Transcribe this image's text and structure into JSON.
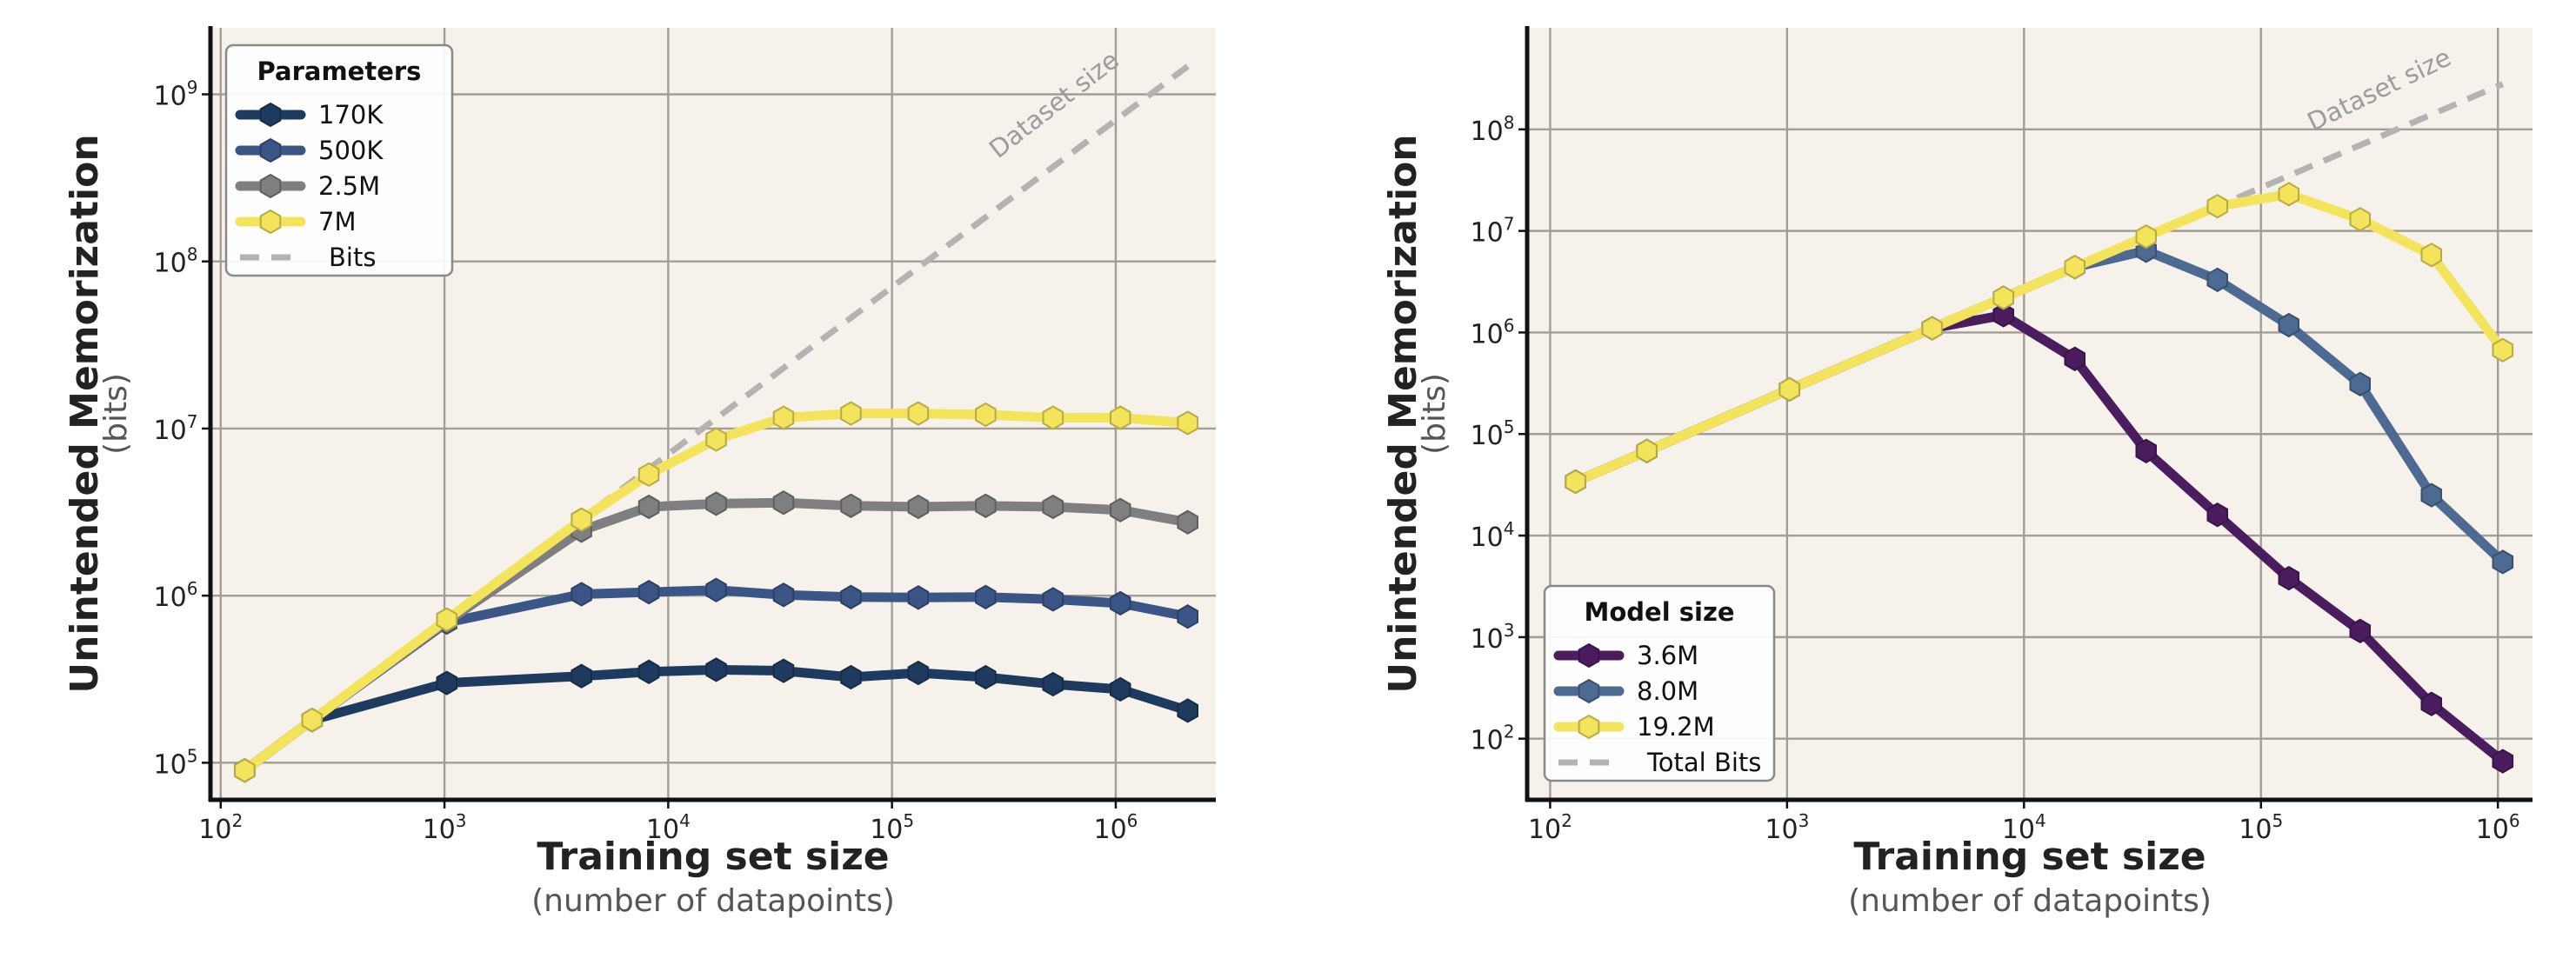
{
  "chart_data": [
    {
      "type": "line",
      "ylabel": "Unintended Memorization",
      "ylabel_sub": "(bits)",
      "xlabel": "Training set size",
      "xlabel_sub": "(number of datapoints)",
      "xscale": "log",
      "yscale": "log",
      "xlim": [
        90,
        2800000
      ],
      "ylim": [
        60000,
        2500000000
      ],
      "grid": true,
      "x_ticks": [
        {
          "value": 100,
          "base": "10",
          "exp": "2"
        },
        {
          "value": 1000,
          "base": "10",
          "exp": "3"
        },
        {
          "value": 10000,
          "base": "10",
          "exp": "4"
        },
        {
          "value": 100000,
          "base": "10",
          "exp": "5"
        },
        {
          "value": 1000000,
          "base": "10",
          "exp": "6"
        }
      ],
      "y_ticks": [
        {
          "value": 100000,
          "base": "10",
          "exp": "5"
        },
        {
          "value": 1000000,
          "base": "10",
          "exp": "6"
        },
        {
          "value": 10000000,
          "base": "10",
          "exp": "7"
        },
        {
          "value": 100000000,
          "base": "10",
          "exp": "8"
        },
        {
          "value": 1000000000,
          "base": "10",
          "exp": "9"
        }
      ],
      "legend": {
        "title": "Parameters",
        "position": "top-left"
      },
      "series": [
        {
          "name": "170K",
          "color": "#1f3a5f",
          "x": [
            128,
            256,
            1024,
            4096,
            8192,
            16384,
            32768,
            65536,
            131072,
            262144,
            524288,
            1048576,
            2097152
          ],
          "values": [
            90000,
            180000,
            300000,
            330000,
            350000,
            360000,
            355000,
            325000,
            345000,
            325000,
            295000,
            275000,
            205000
          ]
        },
        {
          "name": "500K",
          "color": "#3c5587",
          "x": [
            128,
            256,
            1024,
            4096,
            8192,
            16384,
            32768,
            65536,
            131072,
            262144,
            524288,
            1048576,
            2097152
          ],
          "values": [
            90000,
            180000,
            690000,
            1020000,
            1050000,
            1080000,
            1010000,
            980000,
            975000,
            980000,
            950000,
            900000,
            750000
          ]
        },
        {
          "name": "2.5M",
          "color": "#7f7f7f",
          "x": [
            128,
            256,
            1024,
            4096,
            8192,
            16384,
            32768,
            65536,
            131072,
            262144,
            524288,
            1048576,
            2097152
          ],
          "values": [
            90000,
            180000,
            700000,
            2450000,
            3400000,
            3550000,
            3600000,
            3450000,
            3400000,
            3450000,
            3400000,
            3250000,
            2750000
          ]
        },
        {
          "name": "7M",
          "color": "#f3e45c",
          "x": [
            128,
            256,
            1024,
            4096,
            8192,
            16384,
            32768,
            65536,
            131072,
            262144,
            524288,
            1048576,
            2097152
          ],
          "values": [
            90000,
            180000,
            720000,
            2850000,
            5300000,
            8600000,
            11600000,
            12300000,
            12300000,
            12100000,
            11600000,
            11600000,
            10800000
          ]
        }
      ],
      "reference_line": {
        "name": "Bits",
        "label": "Dataset size",
        "color": "#b3b3b3",
        "style": "dashed",
        "x": [
          128,
          2097152
        ],
        "values": [
          90000,
          1470000000
        ]
      }
    },
    {
      "type": "line",
      "ylabel": "Unintended Memorization",
      "ylabel_sub": "(bits)",
      "xlabel": "Training set size",
      "xlabel_sub": "(number of datapoints)",
      "xscale": "log",
      "yscale": "log",
      "xlim": [
        80,
        1400000
      ],
      "ylim": [
        25,
        1000000000
      ],
      "grid": true,
      "x_ticks": [
        {
          "value": 100,
          "base": "10",
          "exp": "2"
        },
        {
          "value": 1000,
          "base": "10",
          "exp": "3"
        },
        {
          "value": 10000,
          "base": "10",
          "exp": "4"
        },
        {
          "value": 100000,
          "base": "10",
          "exp": "5"
        },
        {
          "value": 1000000,
          "base": "10",
          "exp": "6"
        }
      ],
      "y_ticks": [
        {
          "value": 100,
          "base": "10",
          "exp": "2"
        },
        {
          "value": 1000,
          "base": "10",
          "exp": "3"
        },
        {
          "value": 10000,
          "base": "10",
          "exp": "4"
        },
        {
          "value": 100000,
          "base": "10",
          "exp": "5"
        },
        {
          "value": 1000000,
          "base": "10",
          "exp": "6"
        },
        {
          "value": 10000000,
          "base": "10",
          "exp": "7"
        },
        {
          "value": 100000000,
          "base": "10",
          "exp": "8"
        }
      ],
      "legend": {
        "title": "Model size",
        "position": "bottom-left"
      },
      "series": [
        {
          "name": "3.6M",
          "color": "#4b1c5e",
          "x": [
            128,
            256,
            1024,
            4096,
            8192,
            16384,
            32768,
            65536,
            131072,
            262144,
            524288,
            1048576
          ],
          "values": [
            34000,
            68000,
            275000,
            1100000,
            1480000,
            550000,
            68000,
            16000,
            3800,
            1150,
            220,
            60
          ]
        },
        {
          "name": "8.0M",
          "color": "#4d6a92",
          "x": [
            128,
            256,
            1024,
            4096,
            8192,
            16384,
            32768,
            65536,
            131072,
            262144,
            524288,
            1048576
          ],
          "values": [
            34000,
            68000,
            275000,
            1100000,
            2200000,
            4400000,
            6400000,
            3300000,
            1180000,
            310000,
            25000,
            5500
          ]
        },
        {
          "name": "19.2M",
          "color": "#f3e45c",
          "x": [
            128,
            256,
            1024,
            4096,
            8192,
            16384,
            32768,
            65536,
            131072,
            262144,
            524288,
            1048576
          ],
          "values": [
            34000,
            68000,
            275000,
            1100000,
            2200000,
            4400000,
            8800000,
            17500000,
            23000000,
            13000000,
            5800000,
            670000
          ]
        }
      ],
      "reference_line": {
        "name": "Total Bits",
        "label": "Dataset size",
        "color": "#b3b3b3",
        "style": "dashed",
        "x": [
          128,
          1048576
        ],
        "values": [
          34000,
          280000000
        ]
      }
    }
  ]
}
